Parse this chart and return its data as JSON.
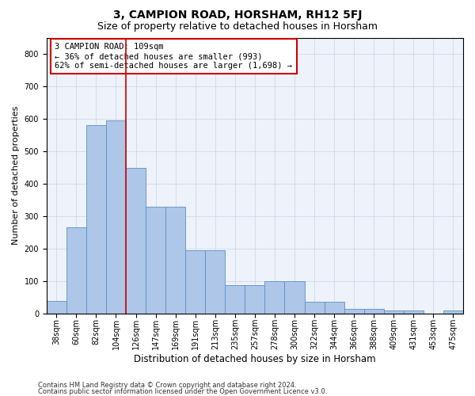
{
  "title": "3, CAMPION ROAD, HORSHAM, RH12 5FJ",
  "subtitle": "Size of property relative to detached houses in Horsham",
  "xlabel": "Distribution of detached houses by size in Horsham",
  "ylabel": "Number of detached properties",
  "categories": [
    "38sqm",
    "60sqm",
    "82sqm",
    "104sqm",
    "126sqm",
    "147sqm",
    "169sqm",
    "191sqm",
    "213sqm",
    "235sqm",
    "257sqm",
    "278sqm",
    "300sqm",
    "322sqm",
    "344sqm",
    "366sqm",
    "388sqm",
    "409sqm",
    "431sqm",
    "453sqm",
    "475sqm"
  ],
  "values": [
    38,
    265,
    580,
    595,
    448,
    328,
    328,
    195,
    195,
    88,
    88,
    100,
    100,
    35,
    35,
    15,
    15,
    10,
    10,
    0,
    10
  ],
  "bar_color": "#aec6e8",
  "bar_edge_color": "#5b8fc4",
  "red_line_x": 3.5,
  "annotation_line1": "3 CAMPION ROAD: 109sqm",
  "annotation_line2": "← 36% of detached houses are smaller (993)",
  "annotation_line3": "62% of semi-detached houses are larger (1,698) →",
  "annotation_box_color": "#ffffff",
  "annotation_box_edge": "#cc0000",
  "ylim": [
    0,
    850
  ],
  "yticks": [
    0,
    100,
    200,
    300,
    400,
    500,
    600,
    700,
    800
  ],
  "red_line_color": "#cc0000",
  "footer1": "Contains HM Land Registry data © Crown copyright and database right 2024.",
  "footer2": "Contains public sector information licensed under the Open Government Licence v3.0.",
  "grid_color": "#c8d4e8",
  "background_color": "#eef2fa",
  "title_fontsize": 10,
  "subtitle_fontsize": 9,
  "tick_fontsize": 7,
  "ylabel_fontsize": 8,
  "xlabel_fontsize": 8.5,
  "footer_fontsize": 6,
  "annotation_fontsize": 7.5
}
